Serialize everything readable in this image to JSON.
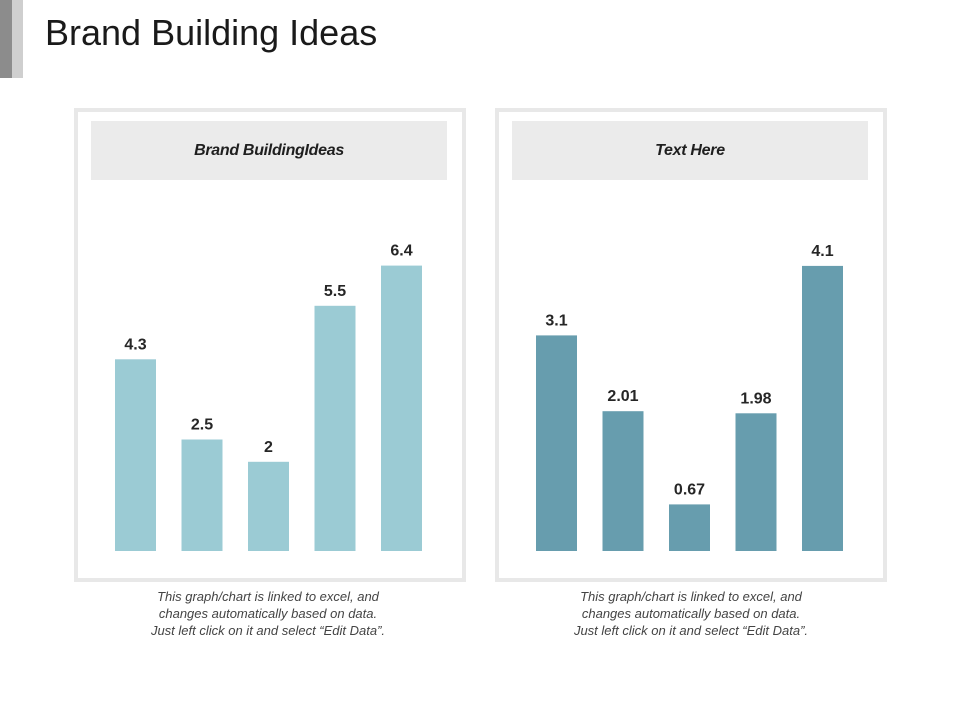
{
  "slide": {
    "title": "Brand Building Ideas",
    "accent_colors": [
      "#8c8c8c",
      "#cfcfcf"
    ]
  },
  "panels": [
    {
      "header": "Brand BuildingIdeas",
      "caption": "This graph/chart is linked to excel, and changes automatically based on data. Just left click on it and select “Edit Data”."
    },
    {
      "header": "Text Here",
      "caption": "This graph/chart is linked to excel, and changes automatically based on data. Just left click on it and select “Edit Data”."
    }
  ],
  "chart_data": [
    {
      "type": "bar",
      "title": "Brand BuildingIdeas",
      "categories": [
        "",
        "",
        "",
        "",
        ""
      ],
      "values": [
        4.3,
        2.5,
        2,
        5.5,
        6.4
      ],
      "value_labels": [
        "4.3",
        "2.5",
        "2",
        "5.5",
        "6.4"
      ],
      "ylim": [
        0,
        8.5
      ],
      "grid": false,
      "legend": "none",
      "color": "#9bcbd4"
    },
    {
      "type": "bar",
      "title": "Text Here",
      "categories": [
        "",
        "",
        "",
        "",
        ""
      ],
      "values": [
        3.1,
        2.01,
        0.67,
        1.98,
        4.1
      ],
      "value_labels": [
        "3.1",
        "2.01",
        "0.67",
        "1.98",
        "4.1"
      ],
      "ylim": [
        0,
        5.45
      ],
      "grid": false,
      "legend": "none",
      "color": "#679dae"
    }
  ]
}
